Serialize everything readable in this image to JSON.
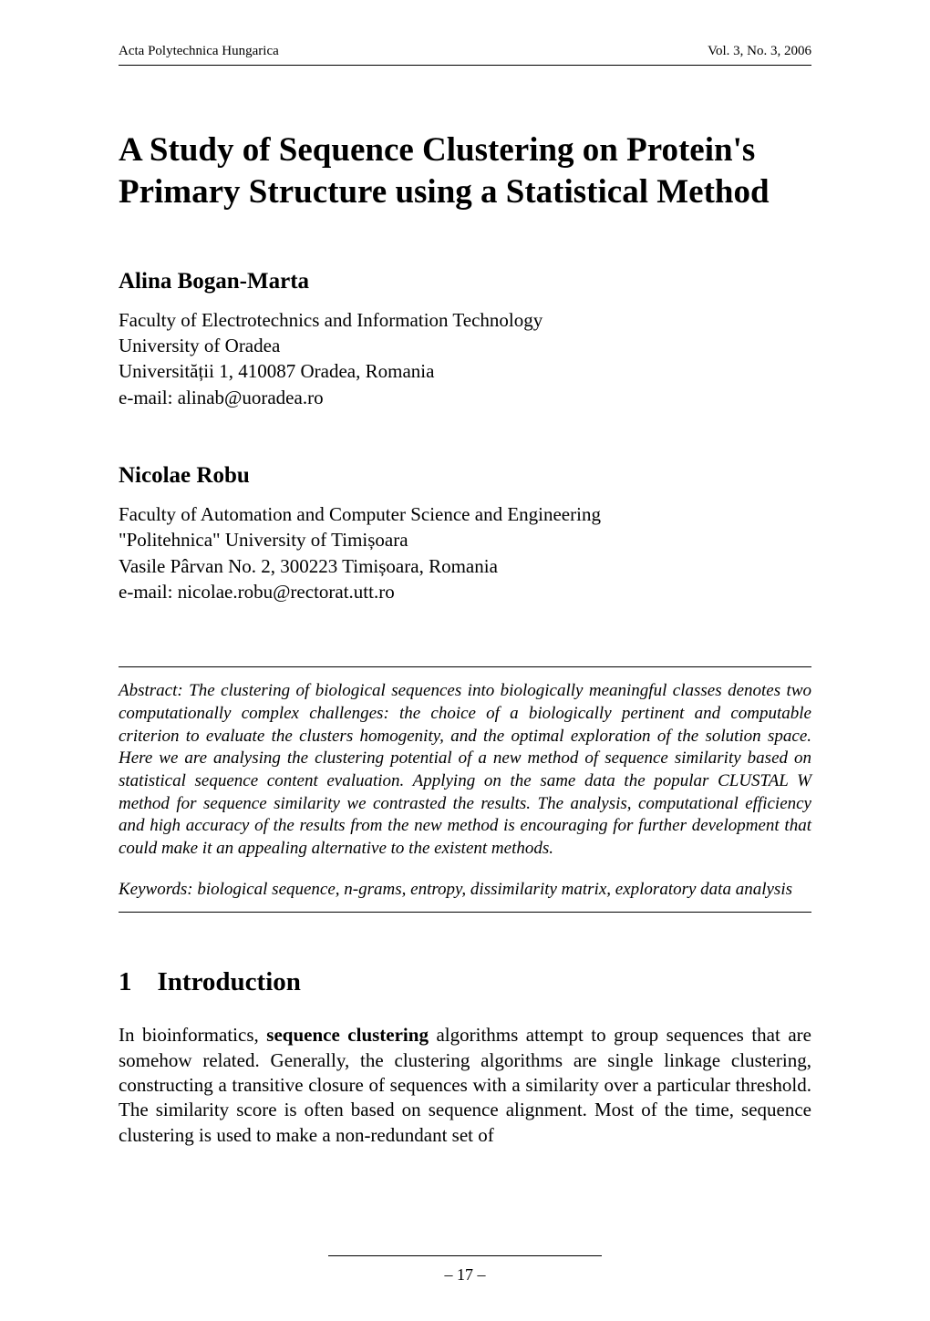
{
  "runningHead": {
    "left": "Acta Polytechnica Hungarica",
    "right": "Vol. 3, No. 3, 2006"
  },
  "title": "A Study of Sequence Clustering on Protein's Primary Structure using a Statistical Method",
  "authors": [
    {
      "name": "Alina Bogan-Marta",
      "affiliation": [
        "Faculty of Electrotechnics and Information Technology",
        "University of Oradea",
        "Universității 1, 410087 Oradea, Romania",
        "e-mail: alinab@uoradea.ro"
      ]
    },
    {
      "name": "Nicolae Robu",
      "affiliation": [
        "Faculty of Automation and Computer Science and Engineering",
        "\"Politehnica\" University of Timișoara",
        "Vasile Pârvan No. 2, 300223 Timișoara, Romania",
        "e-mail: nicolae.robu@rectorat.utt.ro"
      ]
    }
  ],
  "abstract": {
    "label": "Abstract:",
    "text": "The clustering of biological sequences into biologically meaningful classes denotes two computationally complex challenges: the choice of a biologically pertinent and computable criterion to evaluate the clusters homogenity, and the optimal exploration of the solution space. Here we are analysing the clustering potential of a new method of sequence similarity based on statistical sequence content evaluation. Applying on the same data the popular CLUSTAL W method for sequence similarity we contrasted the results. The analysis, computational efficiency and high accuracy of the results from the new method is encouraging for further development that could make it an appealing alternative to the existent methods."
  },
  "keywords": {
    "label": "Keywords:",
    "text": "biological sequence, n-grams, entropy, dissimilarity matrix, exploratory data analysis"
  },
  "sections": [
    {
      "number": "1",
      "title": "Introduction",
      "paragraphs": [
        {
          "prefix": "In bioinformatics, ",
          "boldTerm": "sequence clustering",
          "suffix": " algorithms attempt to group sequences that are somehow related. Generally, the clustering algorithms are single linkage clustering, constructing a transitive closure of sequences with a similarity over a particular threshold. The similarity score is often based on sequence alignment. Most of the time, sequence clustering is used to make a non-redundant set of"
        }
      ]
    }
  ],
  "pageNumber": "– 17 –"
}
